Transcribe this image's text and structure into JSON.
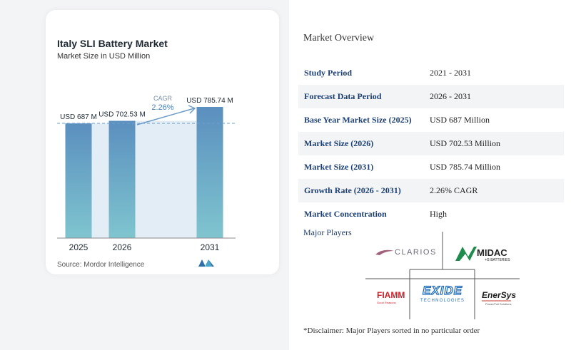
{
  "chart": {
    "title": "Italy SLI Battery Market",
    "subtitle": "Market Size in USD Million",
    "source": "Source: Mordor Intelligence",
    "cagr_label": "CAGR",
    "cagr_value": "2.26%"
  },
  "chart_data": {
    "type": "bar",
    "categories": [
      "2025",
      "2026",
      "2031"
    ],
    "values": [
      687,
      702.53,
      785.74
    ],
    "data_labels": [
      "USD 687 M",
      "USD 702.53 M",
      "USD 785.74 M"
    ],
    "title": "Italy SLI Battery Market",
    "subtitle": "Market Size in USD Million",
    "xlabel": "",
    "ylabel": "",
    "annotation": "CAGR 2.26%",
    "colors": {
      "bar_top": "#5b8fbf",
      "bar_bottom": "#7fc5cf",
      "band": "#e3edf6"
    }
  },
  "overview": {
    "title": "Market Overview",
    "rows": [
      {
        "key": "Study Period",
        "value": "2021 - 2031"
      },
      {
        "key": "Forecast Data Period",
        "value": "2026 - 2031"
      },
      {
        "key": "Base Year Market Size (2025)",
        "value": "USD 687 Million"
      },
      {
        "key": "Market Size (2026)",
        "value": "USD 702.53 Million"
      },
      {
        "key": "Market Size (2031)",
        "value": "USD 785.74 Million"
      },
      {
        "key": "Growth Rate (2026 - 2031)",
        "value": "2.26% CAGR"
      },
      {
        "key": "Market Concentration",
        "value": "High"
      }
    ]
  },
  "players": {
    "title": "Major Players",
    "logos": [
      "CLARIOS",
      "MIDAC",
      "FIAMM",
      "EXIDE",
      "TECHNOLOGIES",
      "EnerSys"
    ]
  },
  "disclaimer": "*Disclaimer: Major Players sorted in no particular order"
}
